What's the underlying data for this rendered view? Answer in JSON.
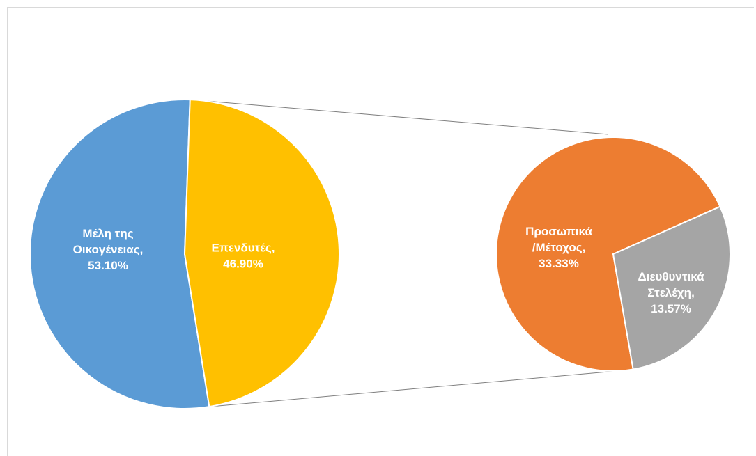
{
  "chart_data": {
    "type": "pie",
    "subtype": "pie-of-pie",
    "main_pie": {
      "slices": [
        {
          "label_lines": [
            "Μέλη της",
            "Οικογένειας,",
            "53.10%"
          ],
          "category": "Μέλη της Οικογένειας",
          "value": 53.1,
          "color": "#5b9bd5"
        },
        {
          "label_lines": [
            "Επενδυτές,",
            "46.90%"
          ],
          "category": "Επενδυτές",
          "value": 46.9,
          "color": "#ffc000"
        }
      ]
    },
    "secondary_pie": {
      "parent_slice": "Επενδυτές",
      "slices": [
        {
          "label_lines": [
            "Προσωπικά",
            "/Μέτοχος,",
            "33.33%"
          ],
          "category": "Προσωπικά /Μέτοχος",
          "value": 33.33,
          "color": "#ed7d31"
        },
        {
          "label_lines": [
            "Διευθυντικά",
            "Στελέχη,",
            "13.57%"
          ],
          "category": "Διευθυντικά Στελέχη",
          "value": 13.57,
          "color": "#a5a5a5"
        }
      ]
    },
    "title": "",
    "legend": "none",
    "connector_color": "#7f7f7f",
    "slice_border_color": "#ffffff",
    "label_color": "#ffffff"
  }
}
